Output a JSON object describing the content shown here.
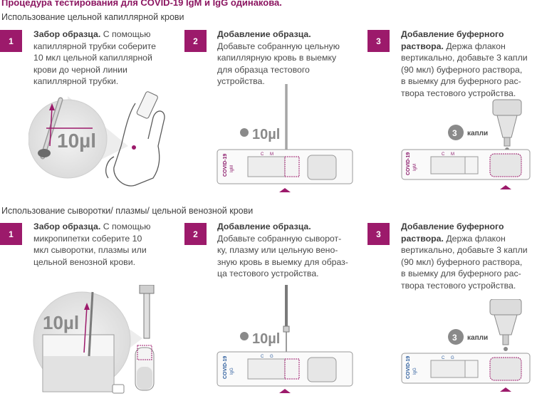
{
  "header": {
    "title": "Процедура тестирования для COVID-19 IgM и IgG одинакова."
  },
  "sections": [
    {
      "title": "Использование цельной капиллярной крови",
      "steps": [
        {
          "num": "1",
          "heading": "Забор образца.",
          "text_lines": [
            "С помощью",
            "капиллярной трубки соберите",
            "10 мкл цельной капиллярной",
            "крови до черной линии",
            "капиллярной трубки."
          ]
        },
        {
          "num": "2",
          "heading": "Добавление образца.",
          "text_lines": [
            "Добавьте собранную цельную",
            "капиллярную кровь в выемку",
            "для образца тестового",
            "устройства."
          ]
        },
        {
          "num": "3",
          "heading_lines": [
            "Добавление буферного",
            "раствора."
          ],
          "text_lines": [
            "Держа флакон",
            "вертикально, добавьте 3 капли",
            "(90 мкл) буферного раствора,",
            "в выемку для буферного рас-",
            "твора тестового устройства."
          ]
        }
      ],
      "volume_label": "10µl",
      "cassette": {
        "brand": "COVID-19",
        "type": "IgM",
        "markers": [
          "C",
          "M"
        ]
      },
      "drops_label": "3",
      "drops_word": "капли"
    },
    {
      "title": "Использование сыворотки/ плазмы/ цельной венозной крови",
      "steps": [
        {
          "num": "1",
          "heading": "Забор образца.",
          "text_lines": [
            "С помощью",
            "микропипетки соберите 10",
            "мкл сыворотки, плазмы или",
            "цельной венозной крови."
          ]
        },
        {
          "num": "2",
          "heading": "Добавление образца.",
          "text_lines": [
            "Добавьте собранную сыворот-",
            "ку, плазму или цельную вено-",
            "зную кровь в выемку для образ-",
            "ца тестового устройства."
          ]
        },
        {
          "num": "3",
          "heading_lines": [
            "Добавление буферного",
            "раствора."
          ],
          "text_lines": [
            "Держа флакон",
            "вертикально, добавьте 3 капли",
            "(90 мкл) буферного раствора,",
            "в выемку для буферного рас-",
            "твора тестового устройства."
          ]
        }
      ],
      "volume_label": "10µl",
      "cassette": {
        "brand": "COVID-19",
        "type": "IgG",
        "markers": [
          "C",
          "G"
        ]
      },
      "drops_label": "3",
      "drops_word": "капли"
    }
  ],
  "colors": {
    "accent": "#9c1a6b",
    "title": "#8b1560",
    "igm_text": "#8b1a6b",
    "igg_text": "#2f5f9e"
  }
}
